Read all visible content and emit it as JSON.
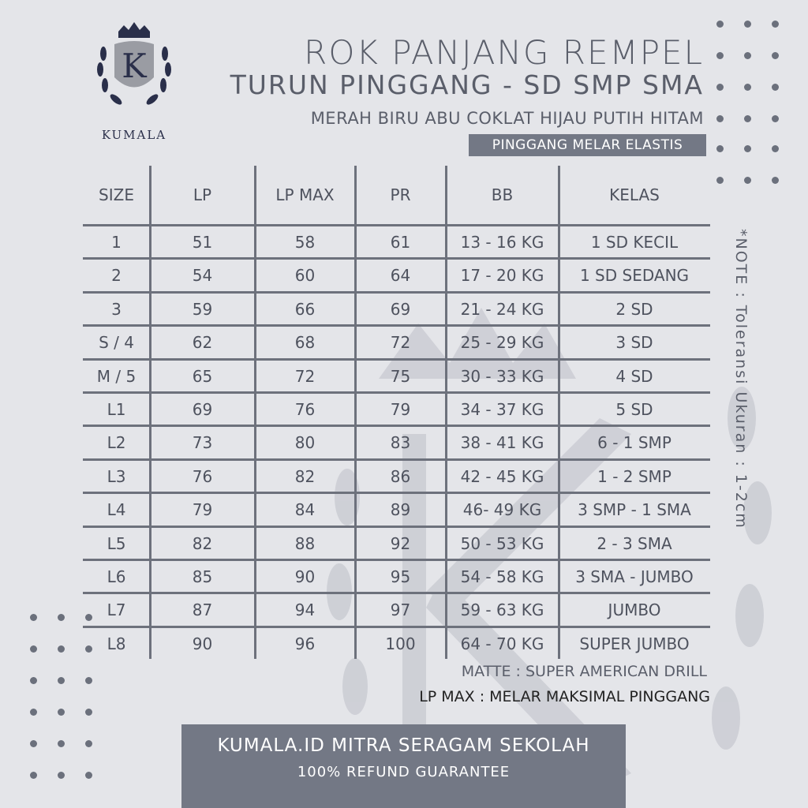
{
  "logo": {
    "text": "KUMALA"
  },
  "header": {
    "title_line1": "ROK PANJANG REMPEL",
    "title_line2": "TURUN PINGGANG - SD SMP SMA",
    "colors": "MERAH BIRU ABU COKLAT HIJAU PUTIH HITAM",
    "badge": "PINGGANG MELAR ELASTIS"
  },
  "table": {
    "headers": [
      "SIZE",
      "LP",
      "LP MAX",
      "PR",
      "BB",
      "KELAS"
    ],
    "rows": [
      [
        "1",
        "51",
        "58",
        "61",
        "13 - 16  KG",
        "1 SD KECIL"
      ],
      [
        "2",
        "54",
        "60",
        "64",
        "17 - 20  KG",
        "1 SD SEDANG"
      ],
      [
        "3",
        "59",
        "66",
        "69",
        "21 - 24  KG",
        "2 SD"
      ],
      [
        "S / 4",
        "62",
        "68",
        "72",
        "25 - 29  KG",
        "3 SD"
      ],
      [
        "M / 5",
        "65",
        "72",
        "75",
        "30 - 33  KG",
        "4 SD"
      ],
      [
        "L1",
        "69",
        "76",
        "79",
        "34 - 37  KG",
        "5 SD"
      ],
      [
        "L2",
        "73",
        "80",
        "83",
        "38 - 41  KG",
        "6 - 1 SMP"
      ],
      [
        "L3",
        "76",
        "82",
        "86",
        "42 - 45  KG",
        "1 - 2 SMP"
      ],
      [
        "L4",
        "79",
        "84",
        "89",
        "46- 49  KG",
        "3 SMP - 1 SMA"
      ],
      [
        "L5",
        "82",
        "88",
        "92",
        "50 - 53  KG",
        "2 - 3 SMA"
      ],
      [
        "L6",
        "85",
        "90",
        "95",
        "54 - 58  KG",
        "3 SMA - JUMBO"
      ],
      [
        "L7",
        "87",
        "94",
        "97",
        "59 - 63  KG",
        "JUMBO"
      ],
      [
        "L8",
        "90",
        "96",
        "100",
        "64 - 70  KG",
        "SUPER JUMBO"
      ]
    ]
  },
  "note": "*NOTE : Toleransi Ukuran : 1-2cm",
  "footer": {
    "matte": "MATTE : SUPER AMERICAN DRILL",
    "lp_max": "LP MAX : MELAR MAKSIMAL PINGGANG",
    "banner_line1": "KUMALA.ID MITRA SERAGAM SEKOLAH",
    "banner_line2": "100% REFUND GUARANTEE"
  },
  "colors": {
    "background": "#e4e5e9",
    "accent": "#737885",
    "text": "#5a5e6a",
    "logo": "#2a2f4a"
  }
}
